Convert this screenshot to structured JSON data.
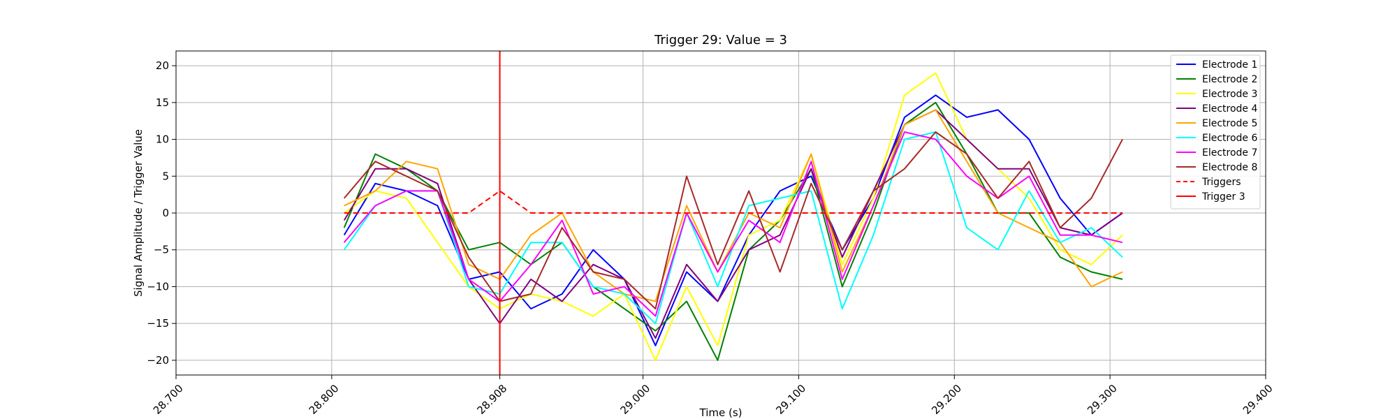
{
  "chart_data": {
    "type": "line",
    "title": "Trigger 29: Value = 3",
    "xlabel": "Time (s)",
    "ylabel": "Signal Amplitude / Trigger Value",
    "xlim": [
      28.7,
      29.4
    ],
    "ylim": [
      -22,
      22
    ],
    "grid": true,
    "legend_position": "top-right",
    "x_ticks": [
      28.7,
      28.8,
      28.908,
      29.0,
      29.1,
      29.2,
      29.3,
      29.4
    ],
    "x_tick_labels": [
      "28.700",
      "28.800",
      "28.908",
      "29.000",
      "29.100",
      "29.200",
      "29.300",
      "29.400"
    ],
    "y_ticks": [
      -20,
      -15,
      -10,
      -5,
      0,
      5,
      10,
      15,
      20
    ],
    "y_tick_labels": [
      "−20",
      "−15",
      "−10",
      "−5",
      "0",
      "5",
      "10",
      "15",
      "20"
    ],
    "x": [
      28.808,
      28.828,
      28.848,
      28.868,
      28.888,
      28.908,
      28.928,
      28.948,
      28.968,
      28.988,
      29.008,
      29.028,
      29.048,
      29.068,
      29.088,
      29.108,
      29.128,
      29.148,
      29.168,
      29.188,
      29.208,
      29.228,
      29.248,
      29.268,
      29.288,
      29.308
    ],
    "series": [
      {
        "name": "Electrode 1",
        "color": "#0000ff",
        "style": "solid",
        "values": [
          -3,
          4,
          3,
          1,
          -9,
          -8,
          -13,
          -11,
          -5,
          -9,
          -18,
          -8,
          -12,
          -3,
          3,
          5,
          -5,
          2,
          13,
          16,
          13,
          14,
          10,
          2,
          -3,
          0
        ]
      },
      {
        "name": "Electrode 2",
        "color": "#008000",
        "style": "solid",
        "values": [
          -2,
          8,
          6,
          3,
          -5,
          -4,
          -7,
          -4,
          -10,
          -13,
          -16,
          -12,
          -20,
          -5,
          -1,
          6,
          -10,
          0,
          12,
          15,
          8,
          0,
          0,
          -6,
          -8,
          -9
        ]
      },
      {
        "name": "Electrode 3",
        "color": "#ffff00",
        "style": "solid",
        "values": [
          0,
          3,
          2,
          -4,
          -10,
          -13,
          -11,
          -12,
          -14,
          -11,
          -20,
          -10,
          -18,
          -3,
          -1,
          8,
          -7,
          2,
          16,
          19,
          10,
          6,
          2,
          -5,
          -7,
          -3
        ]
      },
      {
        "name": "Electrode 4",
        "color": "#800080",
        "style": "solid",
        "values": [
          -1,
          6,
          6,
          4,
          -9,
          -15,
          -9,
          -12,
          -7,
          -9,
          -17,
          -7,
          -12,
          -5,
          -3,
          6,
          -6,
          3,
          12,
          14,
          10,
          6,
          6,
          -2,
          -3,
          0
        ]
      },
      {
        "name": "Electrode 5",
        "color": "#ffa500",
        "style": "solid",
        "values": [
          1,
          3,
          7,
          6,
          -7,
          -9,
          -3,
          0,
          -8,
          -11,
          -12,
          1,
          -8,
          0,
          -2,
          8,
          -8,
          1,
          12,
          14,
          7,
          0,
          -2,
          -4,
          -10,
          -8
        ]
      },
      {
        "name": "Electrode 6",
        "color": "#00ffff",
        "style": "solid",
        "values": [
          -5,
          1,
          3,
          3,
          -10,
          -11,
          -4,
          -4,
          -10,
          -11,
          -15,
          0,
          -10,
          1,
          2,
          3,
          -13,
          -3,
          10,
          11,
          -2,
          -5,
          3,
          -4,
          -2,
          -6
        ]
      },
      {
        "name": "Electrode 7",
        "color": "#ff00ff",
        "style": "solid",
        "values": [
          -4,
          1,
          3,
          3,
          -9,
          -12,
          -7,
          -1,
          -11,
          -10,
          -14,
          0,
          -8,
          -1,
          -4,
          7,
          -9,
          1,
          11,
          10,
          5,
          2,
          5,
          -3,
          -3,
          -4
        ]
      },
      {
        "name": "Electrode 8",
        "color": "#a52a2a",
        "style": "solid",
        "values": [
          2,
          7,
          5,
          3,
          -6,
          -12,
          -11,
          -2,
          -8,
          -9,
          -13,
          5,
          -7,
          3,
          -8,
          4,
          -5,
          3,
          6,
          11,
          8,
          2,
          7,
          -2,
          2,
          10
        ]
      },
      {
        "name": "Triggers",
        "color": "#ff0000",
        "style": "dashed",
        "values": [
          0,
          0,
          0,
          0,
          0,
          3,
          0,
          0,
          0,
          0,
          0,
          0,
          0,
          0,
          0,
          0,
          0,
          0,
          0,
          0,
          0,
          0,
          0,
          0,
          0,
          0
        ]
      }
    ],
    "trigger_line": {
      "name": "Trigger 3",
      "color": "#ff0000",
      "x": 28.908
    }
  }
}
